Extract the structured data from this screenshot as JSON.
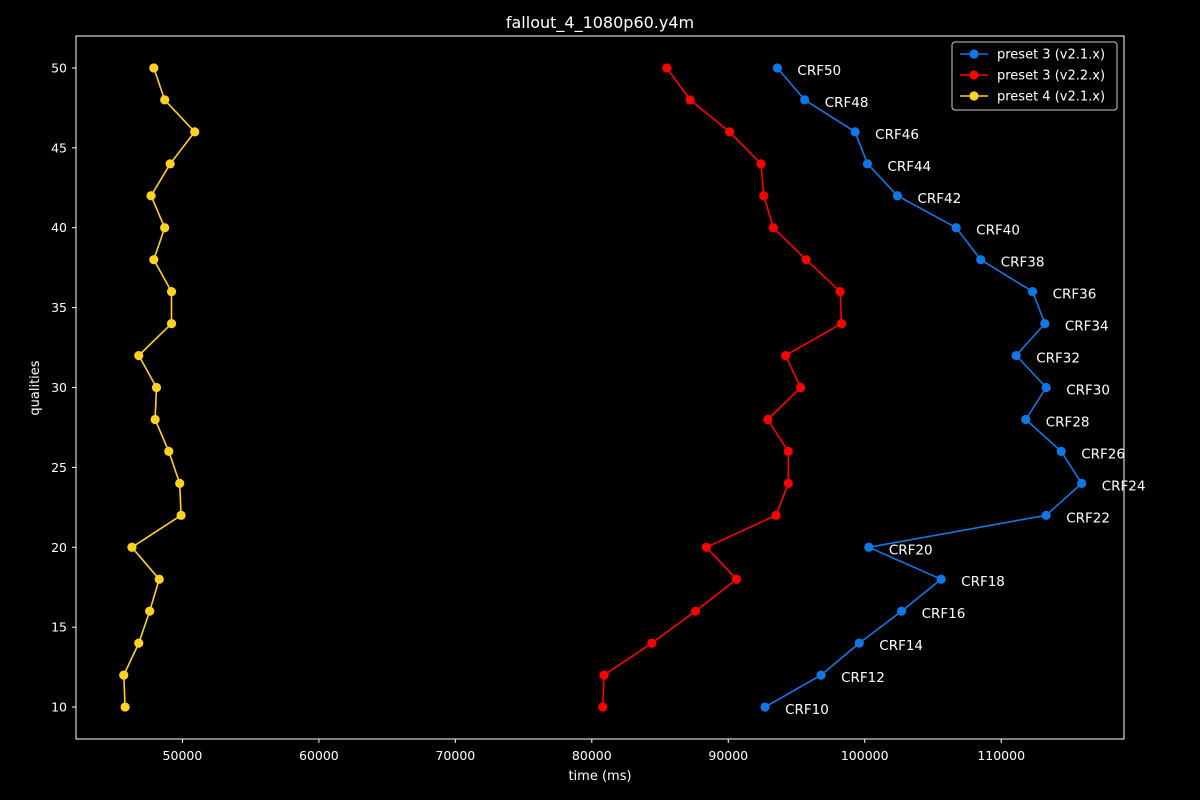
{
  "chart_data": {
    "type": "line",
    "title": "fallout_4_1080p60.y4m",
    "xlabel": "time (ms)",
    "ylabel": "qualities",
    "xlim": [
      42200,
      119000
    ],
    "ylim": [
      8,
      52
    ],
    "x_ticks": [
      50000,
      60000,
      70000,
      80000,
      90000,
      100000,
      110000
    ],
    "y_ticks": [
      10,
      15,
      20,
      25,
      30,
      35,
      40,
      45,
      50
    ],
    "grid": false,
    "legend_position": "top-right",
    "series": [
      {
        "name": "preset 3 (v2.1.x)",
        "color": "#1177e6",
        "points": [
          {
            "x": 93600,
            "y": 50,
            "label": "CRF50"
          },
          {
            "x": 95600,
            "y": 48,
            "label": "CRF48"
          },
          {
            "x": 99300,
            "y": 46,
            "label": "CRF46"
          },
          {
            "x": 100200,
            "y": 44,
            "label": "CRF44"
          },
          {
            "x": 102400,
            "y": 42,
            "label": "CRF42"
          },
          {
            "x": 106700,
            "y": 40,
            "label": "CRF40"
          },
          {
            "x": 108500,
            "y": 38,
            "label": "CRF38"
          },
          {
            "x": 112300,
            "y": 36,
            "label": "CRF36"
          },
          {
            "x": 113200,
            "y": 34,
            "label": "CRF34"
          },
          {
            "x": 111100,
            "y": 32,
            "label": "CRF32"
          },
          {
            "x": 113300,
            "y": 30,
            "label": "CRF30"
          },
          {
            "x": 111800,
            "y": 28,
            "label": "CRF28"
          },
          {
            "x": 114400,
            "y": 26,
            "label": "CRF26"
          },
          {
            "x": 115900,
            "y": 24,
            "label": "CRF24"
          },
          {
            "x": 113300,
            "y": 22,
            "label": "CRF22"
          },
          {
            "x": 100300,
            "y": 20,
            "label": "CRF20"
          },
          {
            "x": 105600,
            "y": 18,
            "label": "CRF18"
          },
          {
            "x": 102700,
            "y": 16,
            "label": "CRF16"
          },
          {
            "x": 99600,
            "y": 14,
            "label": "CRF14"
          },
          {
            "x": 96800,
            "y": 12,
            "label": "CRF12"
          },
          {
            "x": 92700,
            "y": 10,
            "label": "CRF10"
          }
        ]
      },
      {
        "name": "preset 3 (v2.2.x)",
        "color": "#ff0000",
        "points": [
          {
            "x": 85500,
            "y": 50
          },
          {
            "x": 87200,
            "y": 48
          },
          {
            "x": 90100,
            "y": 46
          },
          {
            "x": 92400,
            "y": 44
          },
          {
            "x": 92600,
            "y": 42
          },
          {
            "x": 93300,
            "y": 40
          },
          {
            "x": 95700,
            "y": 38
          },
          {
            "x": 98200,
            "y": 36
          },
          {
            "x": 98300,
            "y": 34
          },
          {
            "x": 94200,
            "y": 32
          },
          {
            "x": 95300,
            "y": 30
          },
          {
            "x": 92900,
            "y": 28
          },
          {
            "x": 94400,
            "y": 26
          },
          {
            "x": 94400,
            "y": 24
          },
          {
            "x": 93500,
            "y": 22
          },
          {
            "x": 88400,
            "y": 20
          },
          {
            "x": 90600,
            "y": 18
          },
          {
            "x": 87600,
            "y": 16
          },
          {
            "x": 84400,
            "y": 14
          },
          {
            "x": 80900,
            "y": 12
          },
          {
            "x": 80800,
            "y": 10
          }
        ]
      },
      {
        "name": "preset 4 (v2.1.x)",
        "color": "#ffd21f",
        "points": [
          {
            "x": 47900,
            "y": 50
          },
          {
            "x": 48700,
            "y": 48
          },
          {
            "x": 50900,
            "y": 46
          },
          {
            "x": 49100,
            "y": 44
          },
          {
            "x": 47700,
            "y": 42
          },
          {
            "x": 48700,
            "y": 40
          },
          {
            "x": 47900,
            "y": 38
          },
          {
            "x": 49200,
            "y": 36
          },
          {
            "x": 49200,
            "y": 34
          },
          {
            "x": 46800,
            "y": 32
          },
          {
            "x": 48100,
            "y": 30
          },
          {
            "x": 48000,
            "y": 28
          },
          {
            "x": 49000,
            "y": 26
          },
          {
            "x": 49800,
            "y": 24
          },
          {
            "x": 49900,
            "y": 22
          },
          {
            "x": 46300,
            "y": 20
          },
          {
            "x": 48300,
            "y": 18
          },
          {
            "x": 47600,
            "y": 16
          },
          {
            "x": 46800,
            "y": 14
          },
          {
            "x": 45700,
            "y": 12
          },
          {
            "x": 45800,
            "y": 10
          }
        ]
      }
    ]
  }
}
